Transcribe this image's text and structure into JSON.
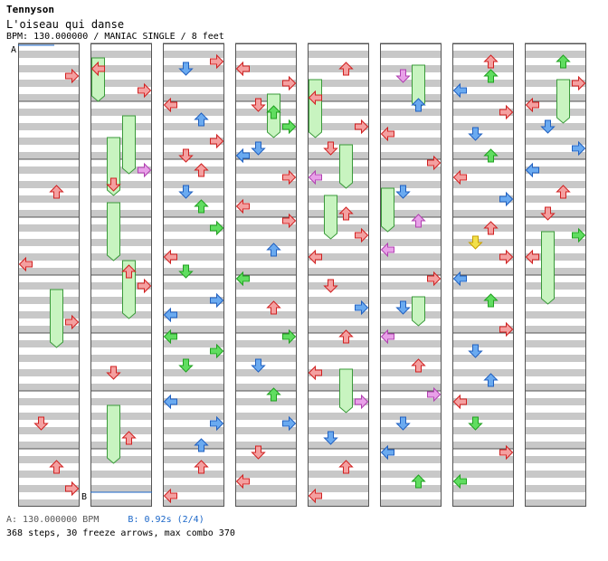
{
  "song": {
    "artist": "Tennyson",
    "title": "L'oiseau qui danse",
    "meta": "BPM: 130.000000 / MANIAC SINGLE / 8 feet"
  },
  "footer": {
    "bpm_a": "A: 130.000000 BPM",
    "stop_b": "B: 0.92s (2/4)",
    "summary": "368 steps, 30 freeze arrows, max combo 370"
  },
  "markers": {
    "a": "A",
    "b": "B"
  },
  "colors": {
    "fourth": "#f4a0a0",
    "eighth": "#6aaaf0",
    "twelfth": "#60dd60",
    "sixteenth": "#e8a0e8",
    "shock": "#f2e04a",
    "freeze": "#c8f4c0",
    "band": "#c8c8c8"
  },
  "chart_data": {
    "type": "step-chart",
    "columns": 8,
    "measures_per_column": 8,
    "lanes": [
      "left",
      "down",
      "up",
      "right"
    ],
    "column_notes": [
      [
        [
          8,
          3,
          "r"
        ],
        [
          40,
          2,
          "r"
        ],
        [
          60,
          0,
          "r"
        ],
        [
          76,
          3,
          "r"
        ],
        [
          104,
          1,
          "r"
        ],
        [
          116,
          2,
          "r"
        ],
        [
          122,
          3,
          "r"
        ]
      ],
      [
        [
          6,
          0,
          "f"
        ],
        [
          12,
          3,
          "r"
        ],
        [
          34,
          3,
          "m"
        ],
        [
          38,
          1,
          "r"
        ],
        [
          62,
          2,
          "r"
        ],
        [
          66,
          3,
          "r"
        ],
        [
          90,
          1,
          "r"
        ],
        [
          108,
          2,
          "r"
        ]
      ],
      [
        [
          4,
          3,
          "r"
        ],
        [
          6,
          1,
          "b"
        ],
        [
          16,
          0,
          "r"
        ],
        [
          20,
          2,
          "b"
        ],
        [
          26,
          3,
          "r"
        ],
        [
          30,
          1,
          "r"
        ],
        [
          34,
          2,
          "r"
        ],
        [
          40,
          1,
          "b"
        ],
        [
          44,
          2,
          "g"
        ],
        [
          50,
          3,
          "g"
        ],
        [
          58,
          0,
          "r"
        ],
        [
          62,
          1,
          "g"
        ],
        [
          70,
          3,
          "b"
        ],
        [
          74,
          0,
          "b"
        ],
        [
          80,
          0,
          "g"
        ],
        [
          84,
          3,
          "g"
        ],
        [
          88,
          1,
          "g"
        ],
        [
          98,
          0,
          "b"
        ],
        [
          104,
          3,
          "b"
        ],
        [
          110,
          2,
          "b"
        ],
        [
          116,
          2,
          "r"
        ],
        [
          124,
          0,
          "r"
        ]
      ],
      [
        [
          6,
          0,
          "r"
        ],
        [
          10,
          3,
          "r"
        ],
        [
          16,
          1,
          "r"
        ],
        [
          18,
          2,
          "g"
        ],
        [
          22,
          3,
          "g"
        ],
        [
          28,
          1,
          "b"
        ],
        [
          30,
          0,
          "b"
        ],
        [
          36,
          3,
          "r"
        ],
        [
          44,
          0,
          "r"
        ],
        [
          48,
          3,
          "r"
        ],
        [
          56,
          2,
          "b"
        ],
        [
          64,
          0,
          "g"
        ],
        [
          72,
          2,
          "r"
        ],
        [
          80,
          3,
          "g"
        ],
        [
          88,
          1,
          "b"
        ],
        [
          96,
          2,
          "g"
        ],
        [
          104,
          3,
          "b"
        ],
        [
          112,
          1,
          "r"
        ],
        [
          120,
          0,
          "r"
        ]
      ],
      [
        [
          6,
          2,
          "r"
        ],
        [
          14,
          0,
          "r"
        ],
        [
          22,
          3,
          "r"
        ],
        [
          28,
          1,
          "r"
        ],
        [
          36,
          0,
          "m"
        ],
        [
          46,
          2,
          "r"
        ],
        [
          52,
          3,
          "r"
        ],
        [
          58,
          0,
          "r"
        ],
        [
          66,
          1,
          "r"
        ],
        [
          72,
          3,
          "b"
        ],
        [
          80,
          2,
          "r"
        ],
        [
          90,
          0,
          "r"
        ],
        [
          98,
          3,
          "m"
        ],
        [
          108,
          1,
          "b"
        ],
        [
          116,
          2,
          "r"
        ],
        [
          124,
          0,
          "r"
        ]
      ],
      [
        [
          8,
          1,
          "m"
        ],
        [
          16,
          2,
          "b"
        ],
        [
          24,
          0,
          "r"
        ],
        [
          32,
          3,
          "r"
        ],
        [
          40,
          1,
          "b"
        ],
        [
          48,
          2,
          "m"
        ],
        [
          56,
          0,
          "m"
        ],
        [
          64,
          3,
          "r"
        ],
        [
          72,
          1,
          "b"
        ],
        [
          80,
          0,
          "m"
        ],
        [
          88,
          2,
          "r"
        ],
        [
          96,
          3,
          "m"
        ],
        [
          104,
          1,
          "b"
        ],
        [
          112,
          0,
          "b"
        ],
        [
          120,
          2,
          "g"
        ]
      ],
      [
        [
          4,
          2,
          "r"
        ],
        [
          8,
          2,
          "g"
        ],
        [
          12,
          0,
          "b"
        ],
        [
          18,
          3,
          "r"
        ],
        [
          24,
          1,
          "b"
        ],
        [
          30,
          2,
          "g"
        ],
        [
          36,
          0,
          "r"
        ],
        [
          42,
          3,
          "b"
        ],
        [
          50,
          2,
          "r"
        ],
        [
          54,
          1,
          "y"
        ],
        [
          58,
          3,
          "r"
        ],
        [
          64,
          0,
          "b"
        ],
        [
          70,
          2,
          "g"
        ],
        [
          78,
          3,
          "r"
        ],
        [
          84,
          1,
          "b"
        ],
        [
          92,
          2,
          "b"
        ],
        [
          98,
          0,
          "r"
        ],
        [
          104,
          1,
          "g"
        ],
        [
          112,
          3,
          "r"
        ],
        [
          120,
          0,
          "g"
        ]
      ],
      [
        [
          4,
          2,
          "g"
        ],
        [
          10,
          3,
          "r"
        ],
        [
          16,
          0,
          "r"
        ],
        [
          22,
          1,
          "b"
        ],
        [
          28,
          3,
          "b"
        ],
        [
          34,
          0,
          "b"
        ],
        [
          40,
          2,
          "r"
        ],
        [
          46,
          1,
          "r"
        ],
        [
          52,
          3,
          "g"
        ],
        [
          58,
          0,
          "r"
        ]
      ]
    ],
    "column_freezes": [
      [
        [
          68,
          2,
          8
        ]
      ],
      [
        [
          4,
          0,
          6
        ],
        [
          20,
          2,
          8
        ],
        [
          26,
          1,
          8
        ],
        [
          44,
          1,
          8
        ],
        [
          60,
          2,
          8
        ],
        [
          100,
          1,
          8
        ]
      ],
      [],
      [
        [
          14,
          2,
          6
        ]
      ],
      [
        [
          10,
          0,
          8
        ],
        [
          28,
          2,
          6
        ],
        [
          42,
          1,
          6
        ],
        [
          90,
          2,
          6
        ]
      ],
      [
        [
          6,
          2,
          6
        ],
        [
          40,
          0,
          6
        ],
        [
          70,
          2,
          4
        ]
      ],
      [],
      [
        [
          10,
          2,
          6
        ],
        [
          52,
          1,
          10
        ]
      ]
    ]
  }
}
